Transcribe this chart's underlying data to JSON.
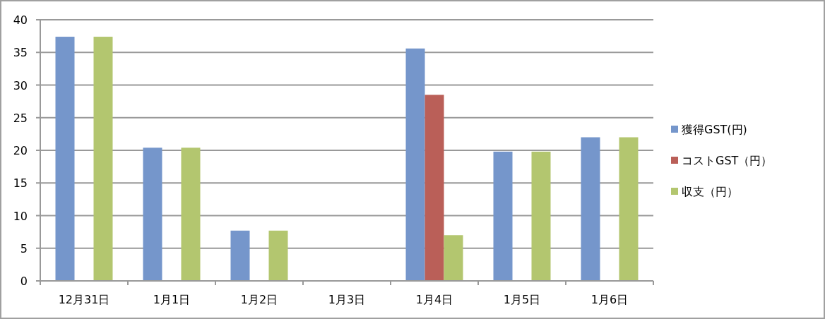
{
  "chart_data": {
    "type": "bar",
    "categories": [
      "12月31日",
      "1月1日",
      "1月2日",
      "1月3日",
      "1月4日",
      "1月5日",
      "1月6日"
    ],
    "series": [
      {
        "name": "獲得GST(円)",
        "color": "#7596cb",
        "values": [
          37.4,
          20.4,
          7.7,
          0,
          35.6,
          19.8,
          22.0
        ]
      },
      {
        "name": "コストGST（円）",
        "color": "#ba5f58",
        "values": [
          0,
          0,
          0,
          0,
          28.5,
          0,
          0
        ]
      },
      {
        "name": "収支（円）",
        "color": "#b3c66f",
        "values": [
          37.4,
          20.4,
          7.7,
          0,
          7.0,
          19.8,
          22.0
        ]
      }
    ],
    "ylim": [
      0,
      40
    ],
    "yticks": [
      0,
      5,
      10,
      15,
      20,
      25,
      30,
      35,
      40
    ],
    "grid": "y",
    "legend": "right"
  }
}
